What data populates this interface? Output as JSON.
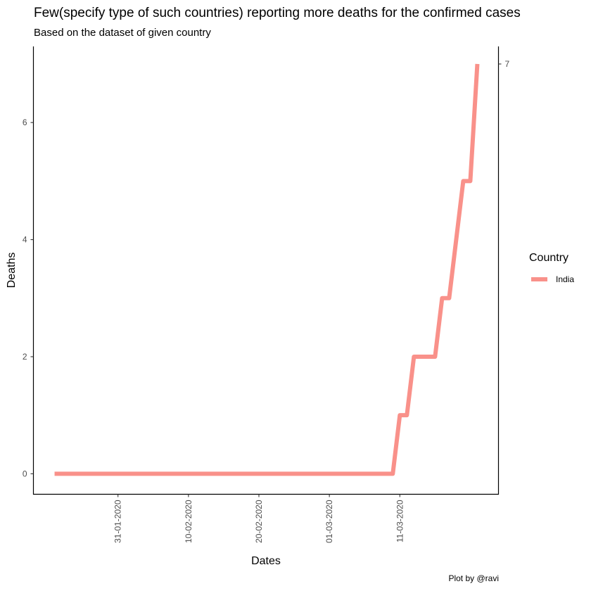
{
  "chart_data": {
    "type": "line",
    "title": "Few(specify type of such countries) reporting more deaths for the confirmed cases",
    "subtitle": "Based on the dataset of given country",
    "xlabel": "Dates",
    "ylabel": "Deaths",
    "caption": "Plot by @ravi",
    "x_tick_labels": [
      "31-01-2020",
      "10-02-2020",
      "20-02-2020",
      "01-03-2020",
      "11-03-2020"
    ],
    "y_ticks": [
      0,
      2,
      4,
      6
    ],
    "y_secondary_ticks": [
      7
    ],
    "ylim": [
      -0.35,
      7.3
    ],
    "xlim": [
      "2020-01-19",
      "2020-03-25"
    ],
    "grid": false,
    "legend": {
      "title": "Country",
      "position": "right"
    },
    "series": [
      {
        "name": "India",
        "color": "#F8766D",
        "points": [
          [
            "2020-01-22",
            0
          ],
          [
            "2020-01-23",
            0
          ],
          [
            "2020-01-24",
            0
          ],
          [
            "2020-01-25",
            0
          ],
          [
            "2020-01-26",
            0
          ],
          [
            "2020-01-27",
            0
          ],
          [
            "2020-01-28",
            0
          ],
          [
            "2020-01-29",
            0
          ],
          [
            "2020-01-30",
            0
          ],
          [
            "2020-01-31",
            0
          ],
          [
            "2020-02-01",
            0
          ],
          [
            "2020-02-02",
            0
          ],
          [
            "2020-02-03",
            0
          ],
          [
            "2020-02-04",
            0
          ],
          [
            "2020-02-05",
            0
          ],
          [
            "2020-02-06",
            0
          ],
          [
            "2020-02-07",
            0
          ],
          [
            "2020-02-08",
            0
          ],
          [
            "2020-02-09",
            0
          ],
          [
            "2020-02-10",
            0
          ],
          [
            "2020-02-11",
            0
          ],
          [
            "2020-02-12",
            0
          ],
          [
            "2020-02-13",
            0
          ],
          [
            "2020-02-14",
            0
          ],
          [
            "2020-02-15",
            0
          ],
          [
            "2020-02-16",
            0
          ],
          [
            "2020-02-17",
            0
          ],
          [
            "2020-02-18",
            0
          ],
          [
            "2020-02-19",
            0
          ],
          [
            "2020-02-20",
            0
          ],
          [
            "2020-02-21",
            0
          ],
          [
            "2020-02-22",
            0
          ],
          [
            "2020-02-23",
            0
          ],
          [
            "2020-02-24",
            0
          ],
          [
            "2020-02-25",
            0
          ],
          [
            "2020-02-26",
            0
          ],
          [
            "2020-02-27",
            0
          ],
          [
            "2020-02-28",
            0
          ],
          [
            "2020-02-29",
            0
          ],
          [
            "2020-03-01",
            0
          ],
          [
            "2020-03-02",
            0
          ],
          [
            "2020-03-03",
            0
          ],
          [
            "2020-03-04",
            0
          ],
          [
            "2020-03-05",
            0
          ],
          [
            "2020-03-06",
            0
          ],
          [
            "2020-03-07",
            0
          ],
          [
            "2020-03-08",
            0
          ],
          [
            "2020-03-09",
            0
          ],
          [
            "2020-03-10",
            0
          ],
          [
            "2020-03-11",
            1
          ],
          [
            "2020-03-12",
            1
          ],
          [
            "2020-03-13",
            2
          ],
          [
            "2020-03-14",
            2
          ],
          [
            "2020-03-15",
            2
          ],
          [
            "2020-03-16",
            2
          ],
          [
            "2020-03-17",
            3
          ],
          [
            "2020-03-18",
            3
          ],
          [
            "2020-03-19",
            4
          ],
          [
            "2020-03-20",
            5
          ],
          [
            "2020-03-21",
            5
          ],
          [
            "2020-03-22",
            7
          ]
        ]
      }
    ]
  }
}
